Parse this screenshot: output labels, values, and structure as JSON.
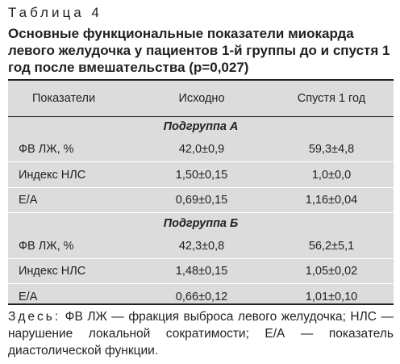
{
  "table_label": "Таблица 4",
  "title": "Основные функциональные показатели миокарда левого желудочка у пациентов 1-й группы до и спустя 1 год после вмешательства (p=0,027)",
  "headers": [
    "Показатели",
    "Исходно",
    "Спустя 1 год"
  ],
  "subgroups": [
    {
      "name": "Подгруппа А",
      "rows": [
        [
          "ФВ ЛЖ, %",
          "42,0±0,9",
          "59,3±4,8"
        ],
        [
          "Индекс НЛС",
          "1,50±0,15",
          "1,0±0,0"
        ],
        [
          "Е/А",
          "0,69±0,15",
          "1,16±0,04"
        ]
      ]
    },
    {
      "name": "Подгруппа Б",
      "rows": [
        [
          "ФВ ЛЖ, %",
          "42,3±0,8",
          "56,2±5,1"
        ],
        [
          "Индекс НЛС",
          "1,48±0,15",
          "1,05±0,02"
        ],
        [
          "Е/А",
          "0,66±0,12",
          "1,01±0,10"
        ]
      ]
    }
  ],
  "note_lead": "Здесь:",
  "note_text": " ФВ ЛЖ — фракция выброса левого желудочка; НЛС — нарушение локальной сократимости; Е/А — показатель диастолической функции."
}
